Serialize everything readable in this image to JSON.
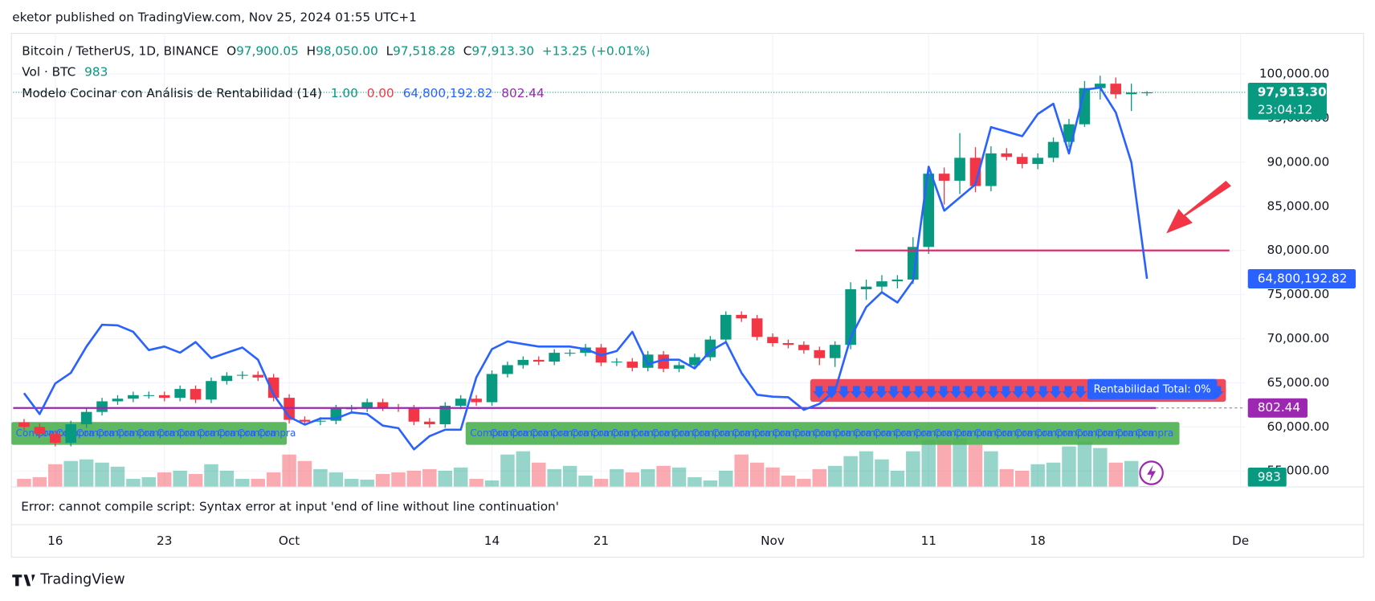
{
  "chart_data": {
    "type": "candlestick",
    "header": "eketor published on TradingView.com, Nov 25, 2024 01:55 UTC+1",
    "title": "Bitcoin / TetherUS, 1D, BINANCE",
    "ohlc": [
      [
        "O",
        "97,900.05"
      ],
      [
        "H",
        "98,050.00"
      ],
      [
        "L",
        "97,518.28"
      ],
      [
        "C",
        "97,913.30"
      ]
    ],
    "change": "+13.25 (+0.01%)",
    "volume_name": "Vol · BTC",
    "indicator_name": "Modelo Cocinar con Análisis de Rentabilidad (14)",
    "outputs": [
      "1.00",
      "0.00"
    ],
    "error": "Error: cannot compile script: Syntax error at input 'end of line without line continuation'",
    "brand": "TradingView",
    "signal_text": "Compra",
    "profit_label": "Rentabilidad Total: 0%",
    "up_color": "#089981",
    "down_color": "#f23645",
    "grid": true,
    "xlim": [
      -0.7,
      78.3
    ],
    "xticks": [
      {
        "value": 2,
        "label": "16"
      },
      {
        "value": 9,
        "label": "23"
      },
      {
        "value": 17,
        "label": "Oct"
      },
      {
        "value": 30,
        "label": "14"
      },
      {
        "value": 37,
        "label": "21"
      },
      {
        "value": 48,
        "label": "Nov"
      },
      {
        "value": 58,
        "label": "11"
      },
      {
        "value": 65,
        "label": "18"
      },
      {
        "value": 78,
        "label": "De"
      }
    ],
    "ylim": [
      53200,
      104600
    ],
    "yticks": [
      {
        "value": 55000,
        "label": "55,000.00"
      },
      {
        "value": 60000,
        "label": "60,000.00"
      },
      {
        "value": 65000,
        "label": "65,000.00"
      },
      {
        "value": 70000,
        "label": "70,000.00"
      },
      {
        "value": 75000,
        "label": "75,000.00"
      },
      {
        "value": 80000,
        "label": "80,000.00"
      },
      {
        "value": 85000,
        "label": "85,000.00"
      },
      {
        "value": 90000,
        "label": "90,000.00"
      },
      {
        "value": 95000,
        "label": "95,000.00"
      },
      {
        "value": 100000,
        "label": "100,000.00"
      }
    ],
    "open": [
      60500,
      60000,
      59200,
      58200,
      60300,
      61700,
      62900,
      63200,
      63600,
      63600,
      63300,
      64300,
      63100,
      65200,
      65800,
      65900,
      65600,
      63300,
      60800,
      60600,
      60700,
      62100,
      62100,
      62800,
      62200,
      62100,
      60600,
      60300,
      62400,
      63200,
      62800,
      66000,
      67000,
      67600,
      67400,
      68400,
      68400,
      69000,
      67300,
      67400,
      66700,
      68200,
      66600,
      67000,
      67900,
      69900,
      72700,
      72300,
      70200,
      69500,
      69300,
      68700,
      67800,
      69300,
      75600,
      75900,
      76500,
      76700,
      80400,
      88700,
      87900,
      90500,
      87300,
      91000,
      90600,
      89800,
      90500,
      92300,
      94300,
      98400,
      98900,
      97700,
      97900.05
    ],
    "high": [
      60900,
      60400,
      59600,
      60700,
      62100,
      63300,
      63600,
      64000,
      64000,
      64000,
      64700,
      64700,
      65600,
      66200,
      66300,
      66300,
      66000,
      63700,
      61200,
      61100,
      62500,
      62500,
      63200,
      63200,
      62600,
      62500,
      61000,
      62800,
      63600,
      63600,
      66400,
      67400,
      68000,
      68000,
      68800,
      68800,
      69400,
      69400,
      67800,
      67800,
      68600,
      68600,
      67400,
      68300,
      70300,
      73100,
      73100,
      72700,
      70600,
      69900,
      69700,
      69100,
      69700,
      76400,
      76700,
      77200,
      77200,
      81500,
      89500,
      89400,
      93300,
      91700,
      91800,
      91600,
      91000,
      91000,
      92800,
      94900,
      99200,
      99800,
      99600,
      98900,
      98050
    ],
    "low": [
      59600,
      58800,
      57800,
      57800,
      59900,
      61300,
      62500,
      62800,
      63200,
      62900,
      62900,
      62700,
      62700,
      64800,
      65400,
      65200,
      62900,
      60400,
      60200,
      60200,
      60300,
      61700,
      61700,
      61800,
      61700,
      60200,
      59900,
      59900,
      62000,
      62400,
      62400,
      65600,
      66600,
      67000,
      67000,
      68000,
      68000,
      66900,
      66900,
      66300,
      66300,
      66200,
      66200,
      66600,
      67500,
      69500,
      71900,
      69800,
      69100,
      68900,
      68300,
      67000,
      66800,
      68800,
      74400,
      75300,
      75700,
      76200,
      79600,
      85200,
      86400,
      86600,
      86700,
      90200,
      89300,
      89200,
      90000,
      91700,
      94000,
      97100,
      97200,
      95800,
      97518.28
    ],
    "close": [
      60000,
      59200,
      58200,
      60300,
      61700,
      62900,
      63200,
      63600,
      63600,
      63300,
      64300,
      63100,
      65200,
      65800,
      65900,
      65600,
      63300,
      60800,
      60600,
      60700,
      62100,
      62100,
      62800,
      62200,
      62100,
      60600,
      60300,
      62400,
      63200,
      62800,
      66000,
      67000,
      67600,
      67400,
      68400,
      68400,
      69000,
      67300,
      67400,
      66700,
      68200,
      66600,
      67000,
      67900,
      69900,
      72700,
      72300,
      70200,
      69500,
      69300,
      68700,
      67800,
      69300,
      75600,
      75900,
      76500,
      76700,
      80400,
      88700,
      87900,
      90500,
      87300,
      91000,
      90600,
      89800,
      90500,
      92300,
      94300,
      98400,
      98900,
      97700,
      97900,
      97913.3
    ],
    "last_price": {
      "label": "97,913.30",
      "countdown": "23:04:12"
    },
    "volume": {
      "ylim": [
        0,
        560000
      ],
      "values": [
        10000,
        12000,
        28000,
        32000,
        34000,
        30000,
        25000,
        10000,
        12000,
        18000,
        20000,
        16000,
        28000,
        20000,
        10000,
        10000,
        18000,
        40000,
        32000,
        22000,
        18000,
        10000,
        9000,
        16000,
        18000,
        20000,
        22000,
        20000,
        24000,
        10000,
        8000,
        40000,
        44000,
        30000,
        22000,
        26000,
        14000,
        10000,
        22000,
        18000,
        22000,
        26000,
        24000,
        12000,
        8000,
        20000,
        40000,
        30000,
        24000,
        14000,
        10000,
        22000,
        26000,
        38000,
        44000,
        34000,
        20000,
        44000,
        58000,
        58000,
        60000,
        52000,
        44000,
        22000,
        20000,
        28000,
        30000,
        50000,
        56000,
        48000,
        30000,
        32000,
        983
      ]
    },
    "indicator": {
      "color": "#2962ff",
      "ylim": [
        0,
        141200000
      ],
      "last_label": "64,800,192.82",
      "values": [
        29200000,
        22700000,
        32200000,
        35500000,
        43700000,
        50500000,
        50300000,
        48300000,
        42600000,
        43700000,
        41800000,
        45100000,
        40100000,
        41800000,
        43400000,
        39600000,
        28700000,
        21800000,
        19400000,
        21300000,
        21300000,
        23200000,
        22700000,
        19100000,
        18300000,
        11700000,
        15800000,
        17800000,
        17800000,
        34100000,
        42900000,
        45300000,
        44500000,
        43700000,
        43700000,
        43700000,
        42900000,
        41000000,
        42300000,
        48300000,
        38200000,
        39600000,
        39600000,
        36900000,
        42300000,
        45100000,
        35500000,
        28700000,
        28100000,
        27900000,
        24000000,
        25900000,
        30000000,
        46400000,
        56000000,
        60600000,
        57400000,
        64200000,
        99700000,
        86000000,
        90100000,
        94200000,
        112000000,
        110600000,
        109200000,
        116100000,
        119300000,
        103800000,
        123700000,
        124300000,
        116600000,
        101000000,
        64800192.82
      ]
    },
    "baseline": {
      "value": 802.44,
      "ylim": [
        0,
        4610
      ],
      "color": "#9c27b0"
    },
    "level": 80000
  }
}
